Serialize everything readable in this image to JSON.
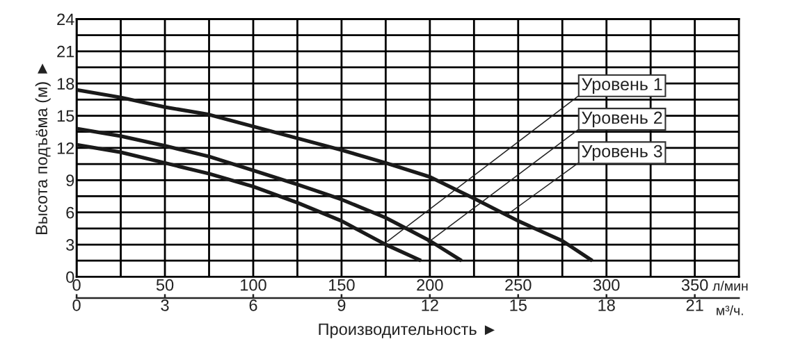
{
  "chart_data": {
    "type": "line",
    "xlabel": "Производительность ►",
    "ylabel": "Высота подъёма (м) ►",
    "x": [
      0,
      25,
      50,
      75,
      100,
      125,
      150,
      175,
      200,
      225,
      250,
      275,
      292
    ],
    "series": [
      {
        "color": "#1a1a1a",
        "values": [
          17.4,
          16.7,
          15.8,
          15.1,
          14.0,
          12.9,
          11.8,
          10.6,
          9.3,
          7.3,
          5.2,
          3.35,
          1.5
        ]
      },
      {
        "color": "#1a1a1a",
        "x": [
          0,
          25,
          50,
          75,
          100,
          125,
          150,
          175,
          200,
          218
        ],
        "values": [
          13.8,
          13.1,
          12.2,
          11.2,
          9.9,
          8.6,
          7.2,
          5.5,
          3.35,
          1.5
        ]
      },
      {
        "color": "#1a1a1a",
        "x": [
          0,
          25,
          50,
          75,
          100,
          125,
          150,
          175,
          195
        ],
        "values": [
          12.3,
          11.6,
          10.6,
          9.6,
          8.4,
          6.9,
          5.2,
          3.0,
          1.5
        ]
      }
    ],
    "xlim": [
      0,
      375
    ],
    "xticks": [
      0,
      {
        "value": 25,
        "label": null
      },
      50,
      {
        "value": 75,
        "label": null
      },
      100,
      {
        "value": 125,
        "label": null
      },
      150,
      {
        "value": 175,
        "label": null
      },
      200,
      {
        "value": 225,
        "label": null
      },
      250,
      {
        "value": 275,
        "label": null
      },
      300,
      {
        "value": 325,
        "label": null
      },
      350
    ],
    "ylim": [
      0,
      24
    ],
    "yticks": [
      0,
      {
        "value": 1.5,
        "label": null
      },
      3,
      {
        "value": 4.5,
        "label": null
      },
      6,
      {
        "value": 7.5,
        "label": null
      },
      9,
      {
        "value": 10.5,
        "label": null
      },
      12,
      {
        "value": 13.5,
        "label": null
      },
      15,
      {
        "value": 16.5,
        "label": null
      },
      18,
      {
        "value": 19.5,
        "label": null
      },
      21,
      {
        "value": 22.5,
        "label": null
      },
      24
    ],
    "x2lim": [
      0,
      22.5
    ],
    "x2ticks": [
      0,
      3,
      6,
      9,
      12,
      15,
      18,
      21
    ],
    "grid": true,
    "line_style": "solid",
    "marker": "none",
    "annotations": [
      "л/мин",
      "м³/ч.",
      {
        "text": "Уровень 1",
        "x": 176,
        "y": 3.3
      },
      {
        "text": "Уровень 2",
        "x": 199,
        "y": 3.2
      },
      {
        "text": "Уровень 3",
        "x": 243,
        "y": 5.7
      }
    ]
  }
}
